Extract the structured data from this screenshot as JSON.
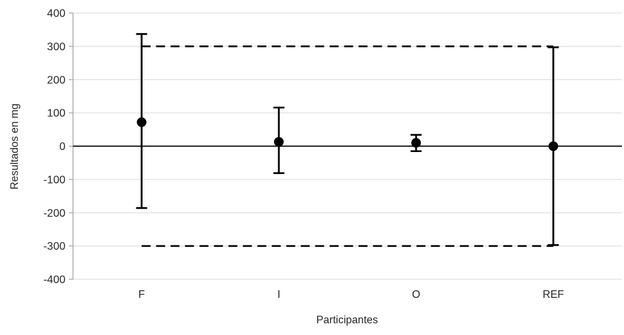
{
  "chart_data": {
    "type": "scatter",
    "subtype": "points-with-error-bars",
    "title": "",
    "xlabel": "Participantes",
    "ylabel": "Resultados en mg",
    "categories": [
      "F",
      "I",
      "O",
      "REF"
    ],
    "points": [
      {
        "category": "F",
        "value": 72,
        "upper": 337,
        "lower": -186
      },
      {
        "category": "I",
        "value": 13,
        "upper": 116,
        "lower": -81
      },
      {
        "category": "O",
        "value": 10,
        "upper": 34,
        "lower": -15
      },
      {
        "category": "REF",
        "value": 0,
        "upper": 297,
        "lower": -297
      }
    ],
    "reference_lines": [
      {
        "value": 300,
        "style": "dashed"
      },
      {
        "value": -300,
        "style": "dashed"
      }
    ],
    "ylim": [
      -400,
      400
    ],
    "yticks": [
      400,
      300,
      200,
      100,
      0,
      -100,
      -200,
      -300,
      -400
    ],
    "zero_line": true,
    "grid": true,
    "legend": "none",
    "colors": {
      "marker": "#000000",
      "error_bar": "#000000",
      "reference_line": "#000000",
      "zero_line": "#000000",
      "grid": "#d9d9d9",
      "axis": "#a6a6a6",
      "text": "#262626",
      "background": "#ffffff"
    }
  }
}
